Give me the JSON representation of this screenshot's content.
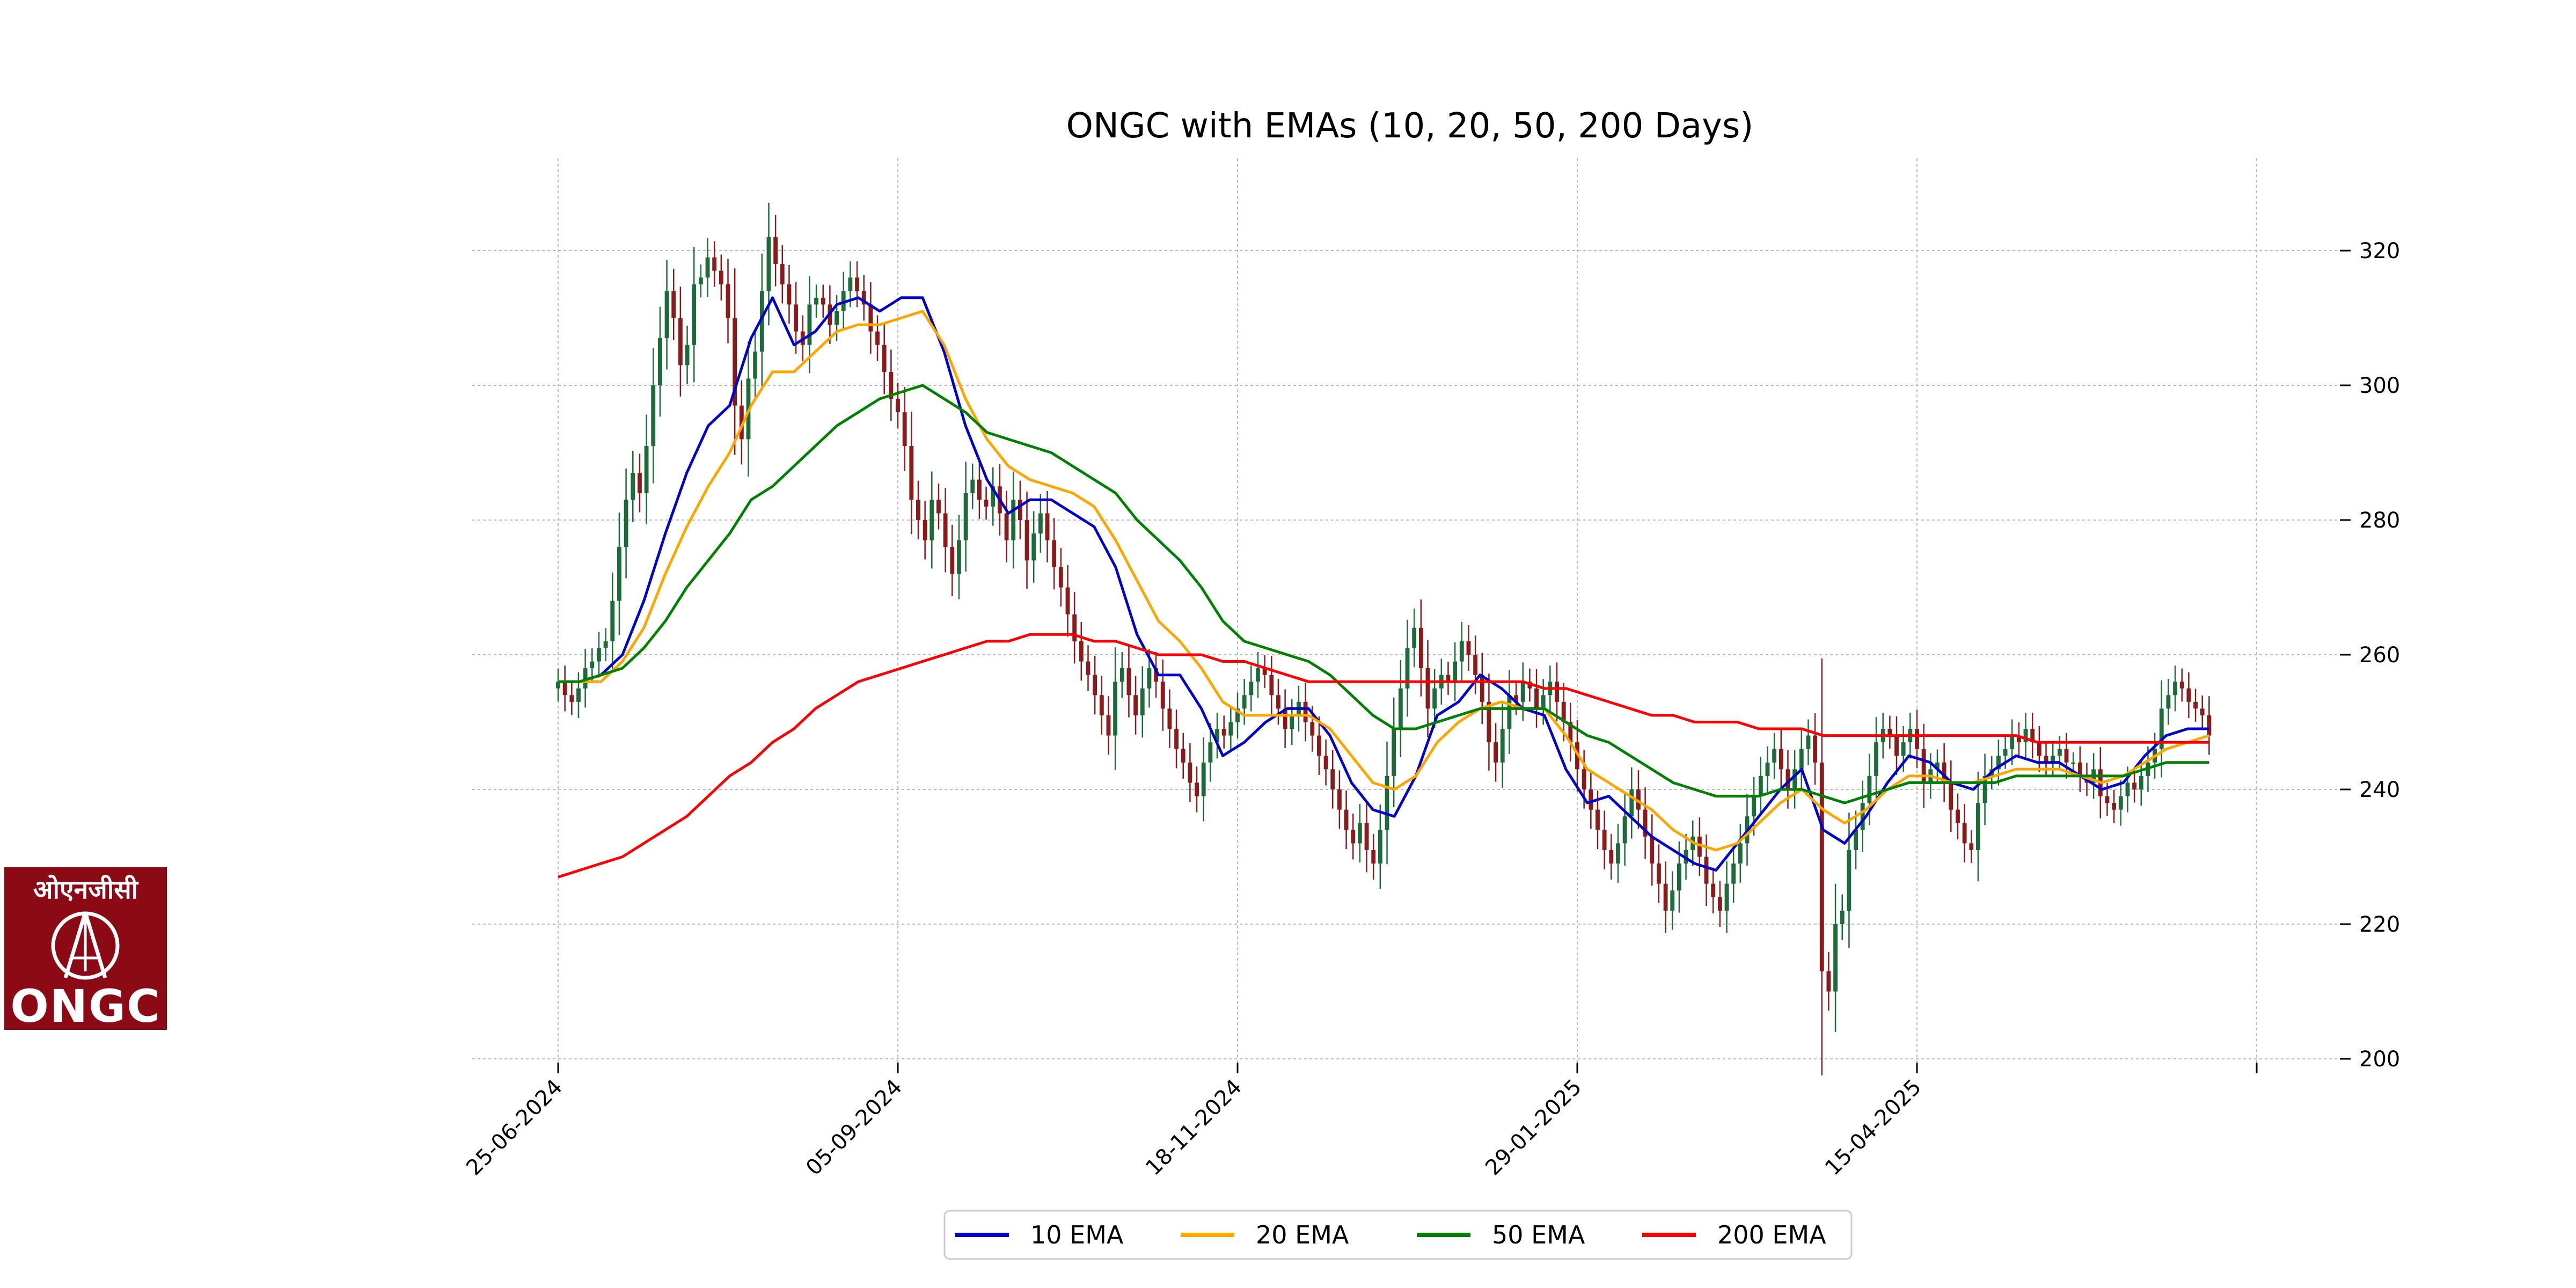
{
  "chart_data": {
    "type": "candlestick",
    "title": "ONGC with EMAs (10, 20, 50, 200 Days)",
    "xlabel": "",
    "ylabel": "",
    "ylim": [
      200,
      330
    ],
    "yticks": [
      200,
      220,
      240,
      260,
      280,
      300,
      320
    ],
    "x_tick_labels": [
      "25-06-2024",
      "05-09-2024",
      "18-11-2024",
      "29-01-2025",
      "15-04-2025",
      ""
    ],
    "x_tick_index": [
      0,
      50,
      100,
      150,
      200,
      250
    ],
    "grid": true,
    "y_axis_side": "right",
    "legend_position": "bottom-center",
    "up_color": "#1e6b3a",
    "down_color": "#8b1a1a",
    "candles_close": [
      256,
      254,
      253,
      255,
      258,
      259,
      261,
      262,
      268,
      276,
      283,
      287,
      284,
      291,
      300,
      307,
      314,
      310,
      303,
      306,
      315,
      316,
      319,
      317,
      315,
      310,
      297,
      292,
      301,
      305,
      314,
      322,
      318,
      315,
      312,
      308,
      306,
      312,
      313,
      312,
      309,
      311,
      314,
      316,
      314,
      312,
      308,
      306,
      302,
      298,
      296,
      291,
      283,
      280,
      277,
      283,
      281,
      276,
      272,
      277,
      284,
      286,
      283,
      282,
      285,
      281,
      277,
      283,
      280,
      274,
      278,
      281,
      277,
      273,
      270,
      266,
      262,
      259,
      257,
      254,
      251,
      248,
      256,
      258,
      254,
      251,
      255,
      258,
      256,
      252,
      249,
      246,
      244,
      241,
      239,
      244,
      247,
      249,
      248,
      250,
      252,
      254,
      256,
      258,
      257,
      254,
      252,
      249,
      251,
      253,
      250,
      248,
      245,
      243,
      240,
      237,
      234,
      232,
      235,
      231,
      229,
      234,
      242,
      249,
      255,
      261,
      264,
      258,
      252,
      255,
      257,
      256,
      259,
      262,
      260,
      257,
      253,
      247,
      244,
      249,
      254,
      253,
      256,
      255,
      252,
      254,
      256,
      253,
      250,
      247,
      243,
      240,
      237,
      234,
      231,
      229,
      232,
      236,
      240,
      237,
      233,
      229,
      226,
      222,
      225,
      229,
      231,
      233,
      230,
      226,
      224,
      222,
      226,
      229,
      232,
      236,
      239,
      242,
      244,
      246,
      243,
      240,
      243,
      246,
      248,
      244,
      213,
      210,
      220,
      222,
      231,
      234,
      238,
      242,
      247,
      249,
      248,
      245,
      247,
      249,
      246,
      241,
      243,
      244,
      241,
      237,
      235,
      232,
      231,
      238,
      242,
      243,
      245,
      246,
      248,
      247,
      249,
      247,
      245,
      244,
      245,
      246,
      244,
      244,
      242,
      241,
      243,
      239,
      238,
      237,
      239,
      241,
      240,
      242,
      244,
      246,
      252,
      254,
      256,
      255,
      253,
      252,
      251,
      248
    ],
    "series": [
      {
        "name": "10 EMA",
        "color": "#0000cc",
        "values": [
          256,
          256,
          257,
          260,
          268,
          278,
          287,
          294,
          297,
          307,
          313,
          306,
          308,
          312,
          313,
          311,
          313,
          313,
          305,
          294,
          286,
          281,
          283,
          283,
          281,
          279,
          273,
          263,
          257,
          257,
          252,
          245,
          247,
          250,
          252,
          252,
          248,
          241,
          237,
          236,
          242,
          251,
          253,
          257,
          255,
          252,
          251,
          243,
          238,
          239,
          236,
          233,
          231,
          229,
          228,
          232,
          236,
          240,
          243,
          234,
          232,
          236,
          241,
          245,
          244,
          241,
          240,
          243,
          245,
          244,
          244,
          242,
          240,
          241,
          245,
          248,
          249,
          249
        ]
      },
      {
        "name": "20 EMA",
        "color": "#ffa500",
        "values": [
          256,
          256,
          256,
          259,
          264,
          272,
          279,
          285,
          290,
          297,
          302,
          302,
          305,
          308,
          309,
          309,
          310,
          311,
          306,
          298,
          292,
          288,
          286,
          285,
          284,
          282,
          277,
          271,
          265,
          262,
          258,
          253,
          251,
          251,
          251,
          251,
          249,
          245,
          241,
          240,
          242,
          247,
          250,
          252,
          253,
          252,
          252,
          248,
          243,
          241,
          239,
          237,
          234,
          232,
          231,
          232,
          235,
          238,
          240,
          237,
          235,
          237,
          240,
          242,
          242,
          241,
          241,
          242,
          243,
          243,
          243,
          242,
          241,
          242,
          244,
          246,
          247,
          248
        ]
      },
      {
        "name": "50 EMA",
        "color": "#008000",
        "values": [
          256,
          256,
          257,
          258,
          261,
          265,
          270,
          274,
          278,
          283,
          285,
          288,
          291,
          294,
          296,
          298,
          299,
          300,
          298,
          296,
          293,
          292,
          291,
          290,
          288,
          286,
          284,
          280,
          277,
          274,
          270,
          265,
          262,
          261,
          260,
          259,
          257,
          254,
          251,
          249,
          249,
          250,
          251,
          252,
          252,
          252,
          252,
          250,
          248,
          247,
          245,
          243,
          241,
          240,
          239,
          239,
          239,
          240,
          240,
          239,
          238,
          239,
          240,
          241,
          241,
          241,
          241,
          241,
          242,
          242,
          242,
          242,
          242,
          242,
          243,
          244,
          244,
          244
        ]
      },
      {
        "name": "200 EMA",
        "color": "#ff0000",
        "values": [
          227,
          228,
          229,
          230,
          232,
          234,
          236,
          239,
          242,
          244,
          247,
          249,
          252,
          254,
          256,
          257,
          258,
          259,
          260,
          261,
          262,
          262,
          263,
          263,
          263,
          262,
          262,
          261,
          260,
          260,
          260,
          259,
          259,
          258,
          257,
          256,
          256,
          256,
          256,
          256,
          256,
          256,
          256,
          256,
          256,
          256,
          255,
          255,
          254,
          253,
          252,
          251,
          251,
          250,
          250,
          250,
          249,
          249,
          249,
          248,
          248,
          248,
          248,
          248,
          248,
          248,
          248,
          248,
          248,
          247,
          247,
          247,
          247,
          247,
          247,
          247,
          247,
          247
        ]
      }
    ]
  },
  "logo": {
    "hindi_text": "ओएनजीसी",
    "english_text": "ONGC"
  }
}
